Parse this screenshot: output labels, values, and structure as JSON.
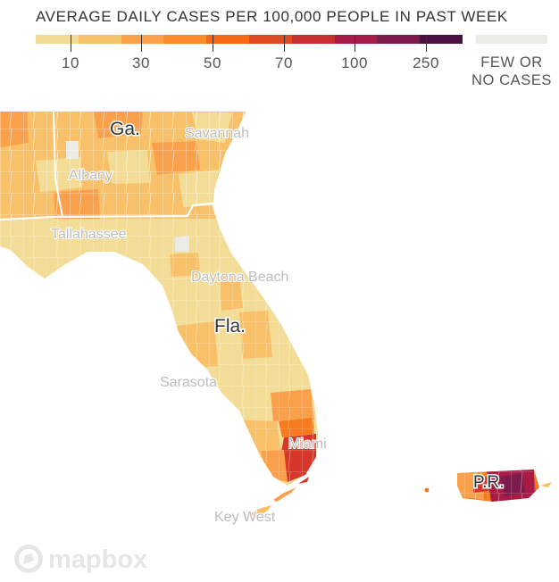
{
  "legend": {
    "title": "AVERAGE DAILY CASES PER 100,000 PEOPLE IN PAST WEEK",
    "scale_colors": [
      "#f2dc95",
      "#f7c26c",
      "#fba14a",
      "#fd8d2a",
      "#f66a13",
      "#e04a22",
      "#c82f33",
      "#a51c46",
      "#7d1c4a",
      "#4a1142"
    ],
    "ticks": [
      "10",
      "30",
      "50",
      "70",
      "100",
      "250"
    ],
    "no_data": {
      "color": "#ebebe8",
      "line1": "FEW OR",
      "line2": "NO CASES"
    }
  },
  "map": {
    "colors": {
      "land": "#f3dd96",
      "water": "#ffffff",
      "level2": "#f8c068",
      "level3": "#fba04a",
      "level4": "#f87a1e",
      "level5": "#d7372a",
      "level6": "#a91a44",
      "none": "#ebebe8"
    },
    "state_labels": [
      "Ga.",
      "Fla.",
      "P.R."
    ],
    "city_labels": [
      "Savannah",
      "Albany",
      "Tallahassee",
      "Daytona Beach",
      "Sarasota",
      "Miami",
      "Key West"
    ]
  },
  "attribution": {
    "logo_text": "mapbox"
  }
}
